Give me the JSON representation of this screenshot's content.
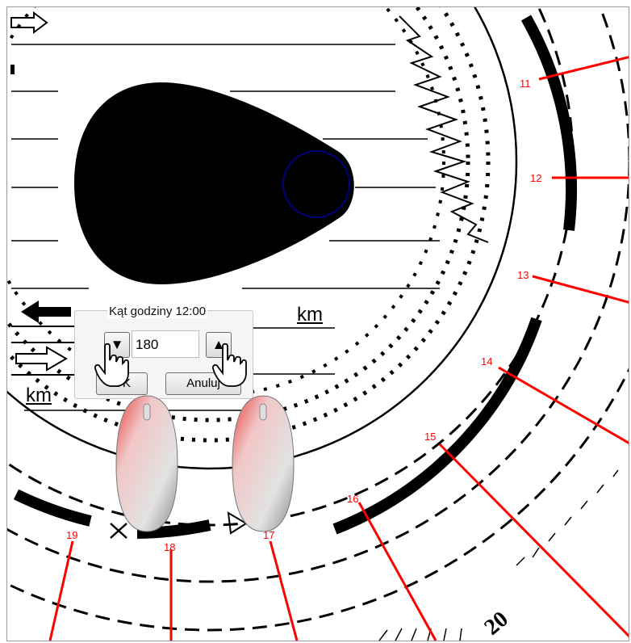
{
  "dialog": {
    "title": "Kąt godziny 12:00",
    "value": "180",
    "ok_label": "OK",
    "cancel_label": "Anuluj"
  },
  "labels": {
    "km_right": "km",
    "km_left": "km"
  },
  "hour_marks": [
    "11",
    "12",
    "13",
    "14",
    "15",
    "16",
    "17",
    "18",
    "19"
  ],
  "dial_text": {
    "twenty": "20"
  },
  "colors": {
    "hour_line": "#ff0000",
    "ring": "#000000",
    "marker_circle": "#000080"
  },
  "icons": [
    "arrow-right-outline-icon",
    "arrow-left-filled-icon",
    "hand-cursor-icon",
    "mouse-icon"
  ]
}
